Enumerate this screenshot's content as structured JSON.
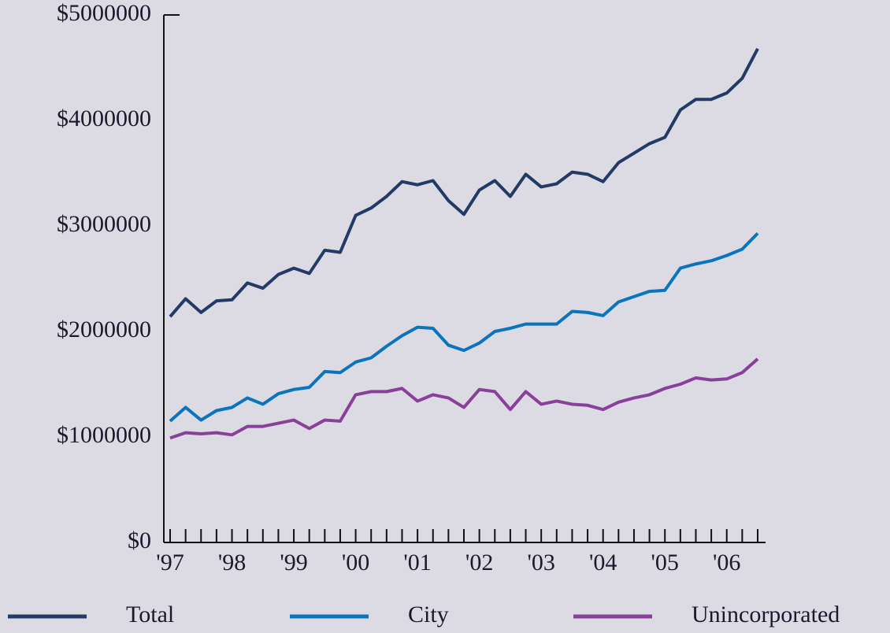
{
  "chart_data": {
    "type": "line",
    "categories": [
      "'97",
      null,
      null,
      null,
      "'98",
      null,
      null,
      null,
      "'99",
      null,
      null,
      null,
      "'00",
      null,
      null,
      null,
      "'01",
      null,
      null,
      null,
      "'02",
      null,
      null,
      null,
      "'03",
      null,
      null,
      null,
      "'04",
      null,
      null,
      null,
      "'05",
      null,
      null,
      null,
      "'06",
      null,
      null
    ],
    "series": [
      {
        "name": "Total",
        "color": "#223a66",
        "values": [
          2140000,
          2310000,
          2180000,
          2290000,
          2300000,
          2460000,
          2410000,
          2540000,
          2600000,
          2550000,
          2770000,
          2750000,
          3100000,
          3170000,
          3280000,
          3420000,
          3390000,
          3430000,
          3240000,
          3110000,
          3340000,
          3430000,
          3280000,
          3490000,
          3370000,
          3400000,
          3510000,
          3490000,
          3420000,
          3600000,
          3690000,
          3780000,
          3840000,
          4100000,
          4200000,
          4200000,
          4260000,
          4400000,
          4680000
        ]
      },
      {
        "name": "City",
        "color": "#0a74bd",
        "values": [
          1150000,
          1280000,
          1160000,
          1250000,
          1280000,
          1370000,
          1310000,
          1410000,
          1450000,
          1470000,
          1620000,
          1610000,
          1710000,
          1750000,
          1860000,
          1960000,
          2040000,
          2030000,
          1870000,
          1820000,
          1890000,
          2000000,
          2030000,
          2070000,
          2070000,
          2070000,
          2190000,
          2180000,
          2150000,
          2280000,
          2330000,
          2380000,
          2390000,
          2600000,
          2640000,
          2670000,
          2720000,
          2780000,
          2930000
        ]
      },
      {
        "name": "Unincorporated",
        "color": "#8a3f9a",
        "values": [
          990000,
          1040000,
          1030000,
          1040000,
          1020000,
          1100000,
          1100000,
          1130000,
          1160000,
          1080000,
          1160000,
          1150000,
          1400000,
          1430000,
          1430000,
          1460000,
          1340000,
          1400000,
          1370000,
          1280000,
          1450000,
          1430000,
          1260000,
          1430000,
          1310000,
          1340000,
          1310000,
          1300000,
          1260000,
          1330000,
          1370000,
          1400000,
          1460000,
          1500000,
          1560000,
          1540000,
          1550000,
          1610000,
          1740000
        ]
      }
    ],
    "ylim": [
      0,
      5000000
    ],
    "yticks": [
      {
        "value": 0,
        "label": "$0"
      },
      {
        "value": 1000000,
        "label": "$1000000"
      },
      {
        "value": 2000000,
        "label": "$2000000"
      },
      {
        "value": 3000000,
        "label": "$3000000"
      },
      {
        "value": 4000000,
        "label": "$4000000"
      },
      {
        "value": 5000000,
        "label": "$5000000"
      }
    ],
    "legend": "bottom"
  }
}
